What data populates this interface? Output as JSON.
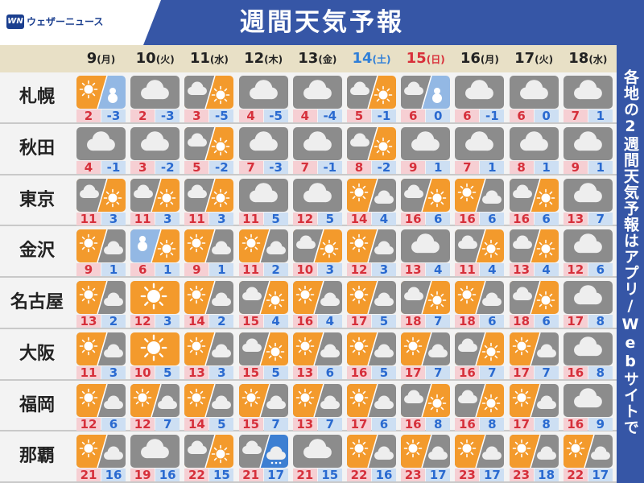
{
  "header": {
    "logo_mark": "WN",
    "logo": "ウェザーニュース",
    "title": "週間天気予報"
  },
  "side_note": "各地の2週間天気予報はアプリ/Webサイトで",
  "days": [
    {
      "date": "9",
      "weekday": "(月)",
      "color": "#222222"
    },
    {
      "date": "10",
      "weekday": "(火)",
      "color": "#222222"
    },
    {
      "date": "11",
      "weekday": "(水)",
      "color": "#222222"
    },
    {
      "date": "12",
      "weekday": "(木)",
      "color": "#222222"
    },
    {
      "date": "13",
      "weekday": "(金)",
      "color": "#222222"
    },
    {
      "date": "14",
      "weekday": "(土)",
      "color": "#2f7fd8"
    },
    {
      "date": "15",
      "weekday": "(日)",
      "color": "#d8303a"
    },
    {
      "date": "16",
      "weekday": "(月)",
      "color": "#222222"
    },
    {
      "date": "17",
      "weekday": "(火)",
      "color": "#222222"
    },
    {
      "date": "18",
      "weekday": "(水)",
      "color": "#222222"
    }
  ],
  "rows": [
    {
      "city": "札幌",
      "cells": [
        {
          "weather": "sun>snow",
          "high": 2,
          "low": -3
        },
        {
          "weather": "cloud",
          "high": 2,
          "low": -3
        },
        {
          "weather": "cloud>sun",
          "high": 3,
          "low": -5
        },
        {
          "weather": "cloud",
          "high": 4,
          "low": -5
        },
        {
          "weather": "cloud",
          "high": 4,
          "low": -4
        },
        {
          "weather": "cloud>sun",
          "high": 5,
          "low": -1
        },
        {
          "weather": "cloud>snow",
          "high": 6,
          "low": 0
        },
        {
          "weather": "cloud",
          "high": 6,
          "low": -1
        },
        {
          "weather": "cloud",
          "high": 6,
          "low": 0
        },
        {
          "weather": "cloud",
          "high": 7,
          "low": 1
        }
      ]
    },
    {
      "city": "秋田",
      "cells": [
        {
          "weather": "cloud",
          "high": 4,
          "low": -1
        },
        {
          "weather": "cloud",
          "high": 3,
          "low": -2
        },
        {
          "weather": "cloud>sun",
          "high": 5,
          "low": -2
        },
        {
          "weather": "cloud",
          "high": 7,
          "low": -3
        },
        {
          "weather": "cloud",
          "high": 7,
          "low": -1
        },
        {
          "weather": "cloud>sun",
          "high": 8,
          "low": -2
        },
        {
          "weather": "cloud",
          "high": 9,
          "low": 1
        },
        {
          "weather": "cloud",
          "high": 7,
          "low": 1
        },
        {
          "weather": "cloud",
          "high": 8,
          "low": 1
        },
        {
          "weather": "cloud",
          "high": 9,
          "low": 1
        }
      ]
    },
    {
      "city": "東京",
      "cells": [
        {
          "weather": "cloud>sun",
          "high": 11,
          "low": 3
        },
        {
          "weather": "cloud>sun",
          "high": 11,
          "low": 3
        },
        {
          "weather": "cloud>sun",
          "high": 11,
          "low": 3
        },
        {
          "weather": "cloud",
          "high": 11,
          "low": 5
        },
        {
          "weather": "cloud",
          "high": 12,
          "low": 5
        },
        {
          "weather": "sun>cloud",
          "high": 14,
          "low": 4
        },
        {
          "weather": "cloud>sun",
          "high": 16,
          "low": 6
        },
        {
          "weather": "sun>cloud",
          "high": 16,
          "low": 6
        },
        {
          "weather": "cloud>sun",
          "high": 16,
          "low": 6
        },
        {
          "weather": "cloud",
          "high": 13,
          "low": 7
        }
      ]
    },
    {
      "city": "金沢",
      "cells": [
        {
          "weather": "sun>cloud",
          "high": 9,
          "low": 1
        },
        {
          "weather": "snow>sun",
          "high": 6,
          "low": 1
        },
        {
          "weather": "sun>cloud",
          "high": 9,
          "low": 1
        },
        {
          "weather": "sun>cloud",
          "high": 11,
          "low": 2
        },
        {
          "weather": "cloud>sun",
          "high": 10,
          "low": 3
        },
        {
          "weather": "sun>cloud",
          "high": 12,
          "low": 3
        },
        {
          "weather": "cloud",
          "high": 13,
          "low": 4
        },
        {
          "weather": "cloud>sun",
          "high": 11,
          "low": 4
        },
        {
          "weather": "cloud>sun",
          "high": 13,
          "low": 4
        },
        {
          "weather": "cloud",
          "high": 12,
          "low": 6
        }
      ]
    },
    {
      "city": "名古屋",
      "cells": [
        {
          "weather": "sun>cloud",
          "high": 13,
          "low": 2
        },
        {
          "weather": "sun",
          "high": 12,
          "low": 3
        },
        {
          "weather": "sun>cloud",
          "high": 14,
          "low": 2
        },
        {
          "weather": "cloud>sun",
          "high": 15,
          "low": 4
        },
        {
          "weather": "sun>cloud",
          "high": 16,
          "low": 4
        },
        {
          "weather": "sun>cloud",
          "high": 17,
          "low": 5
        },
        {
          "weather": "cloud>sun",
          "high": 18,
          "low": 7
        },
        {
          "weather": "sun>cloud",
          "high": 18,
          "low": 6
        },
        {
          "weather": "cloud>sun",
          "high": 18,
          "low": 6
        },
        {
          "weather": "cloud",
          "high": 17,
          "low": 8
        }
      ]
    },
    {
      "city": "大阪",
      "cells": [
        {
          "weather": "sun>cloud",
          "high": 11,
          "low": 3
        },
        {
          "weather": "sun",
          "high": 10,
          "low": 5
        },
        {
          "weather": "sun>cloud",
          "high": 13,
          "low": 3
        },
        {
          "weather": "cloud>sun",
          "high": 15,
          "low": 5
        },
        {
          "weather": "sun>cloud",
          "high": 13,
          "low": 6
        },
        {
          "weather": "sun>cloud",
          "high": 16,
          "low": 5
        },
        {
          "weather": "sun>cloud",
          "high": 17,
          "low": 7
        },
        {
          "weather": "cloud>sun",
          "high": 16,
          "low": 7
        },
        {
          "weather": "sun>cloud",
          "high": 17,
          "low": 7
        },
        {
          "weather": "cloud",
          "high": 16,
          "low": 8
        }
      ]
    },
    {
      "city": "福岡",
      "cells": [
        {
          "weather": "sun>cloud",
          "high": 12,
          "low": 6
        },
        {
          "weather": "sun>cloud",
          "high": 12,
          "low": 7
        },
        {
          "weather": "sun>cloud",
          "high": 14,
          "low": 5
        },
        {
          "weather": "sun>cloud",
          "high": 15,
          "low": 7
        },
        {
          "weather": "sun>cloud",
          "high": 13,
          "low": 7
        },
        {
          "weather": "sun>cloud",
          "high": 17,
          "low": 6
        },
        {
          "weather": "cloud>sun",
          "high": 16,
          "low": 8
        },
        {
          "weather": "cloud>sun",
          "high": 16,
          "low": 8
        },
        {
          "weather": "sun>cloud",
          "high": 17,
          "low": 8
        },
        {
          "weather": "cloud",
          "high": 16,
          "low": 9
        }
      ]
    },
    {
      "city": "那覇",
      "cells": [
        {
          "weather": "sun>cloud",
          "high": 21,
          "low": 16
        },
        {
          "weather": "cloud",
          "high": 19,
          "low": 16
        },
        {
          "weather": "cloud>sun",
          "high": 22,
          "low": 15
        },
        {
          "weather": "cloud>rain",
          "high": 21,
          "low": 17
        },
        {
          "weather": "cloud",
          "high": 21,
          "low": 15
        },
        {
          "weather": "sun>cloud",
          "high": 22,
          "low": 16
        },
        {
          "weather": "sun>cloud",
          "high": 23,
          "low": 17
        },
        {
          "weather": "sun>cloud",
          "high": 23,
          "low": 17
        },
        {
          "weather": "sun>cloud",
          "high": 23,
          "low": 18
        },
        {
          "weather": "sun>cloud",
          "high": 22,
          "low": 17
        }
      ]
    }
  ]
}
